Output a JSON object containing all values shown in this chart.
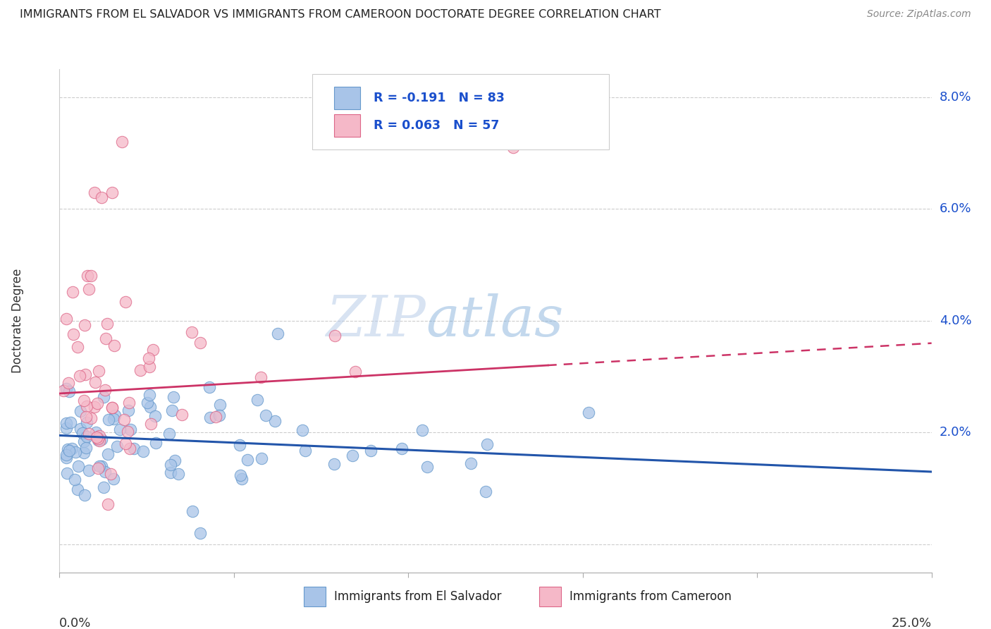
{
  "title": "IMMIGRANTS FROM EL SALVADOR VS IMMIGRANTS FROM CAMEROON DOCTORATE DEGREE CORRELATION CHART",
  "source": "Source: ZipAtlas.com",
  "ylabel": "Doctorate Degree",
  "series1_label": "Immigrants from El Salvador",
  "series1_color": "#a8c4e8",
  "series1_edge_color": "#6699cc",
  "series1_line_color": "#2255aa",
  "series1_R": -0.191,
  "series1_N": 83,
  "series2_label": "Immigrants from Cameroon",
  "series2_color": "#f5b8c8",
  "series2_edge_color": "#dd6688",
  "series2_line_color": "#cc3366",
  "series2_R": 0.063,
  "series2_N": 57,
  "xlim": [
    0.0,
    0.25
  ],
  "ylim": [
    -0.005,
    0.085
  ],
  "y_ticks": [
    0.0,
    0.02,
    0.04,
    0.06,
    0.08
  ],
  "y_tick_labels": [
    "",
    "2.0%",
    "4.0%",
    "6.0%",
    "8.0%"
  ],
  "watermark_zip": "ZIP",
  "watermark_atlas": "atlas",
  "grid_color": "#cccccc",
  "legend_text_color": "#1a4fcc",
  "title_color": "#222222",
  "source_color": "#888888"
}
